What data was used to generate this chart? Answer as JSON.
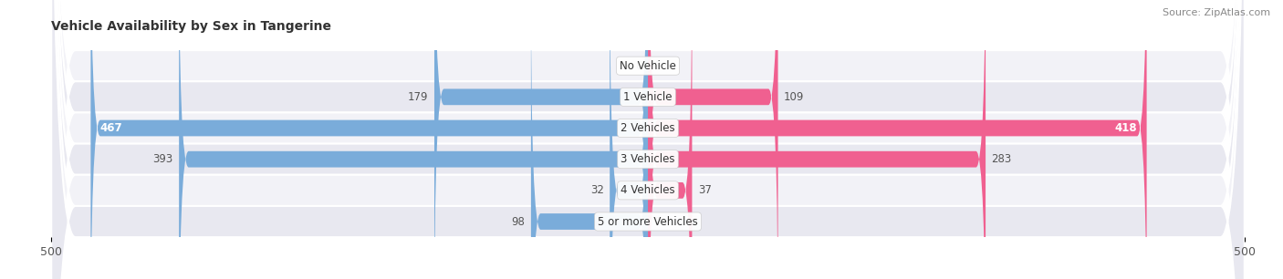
{
  "title": "Vehicle Availability by Sex in Tangerine",
  "source": "Source: ZipAtlas.com",
  "categories": [
    "No Vehicle",
    "1 Vehicle",
    "2 Vehicles",
    "3 Vehicles",
    "4 Vehicles",
    "5 or more Vehicles"
  ],
  "male_values": [
    0,
    179,
    467,
    393,
    32,
    98
  ],
  "female_values": [
    0,
    109,
    418,
    283,
    37,
    0
  ],
  "male_color": "#7aacda",
  "female_color": "#f06090",
  "row_bg_light": "#f2f2f7",
  "row_bg_dark": "#e8e8f0",
  "xlim": 500,
  "bar_height": 0.52,
  "title_fontsize": 10,
  "label_fontsize": 8.5,
  "tick_fontsize": 9,
  "source_fontsize": 8,
  "figure_bg": "#ffffff",
  "axes_bg": "#f2f2f7"
}
